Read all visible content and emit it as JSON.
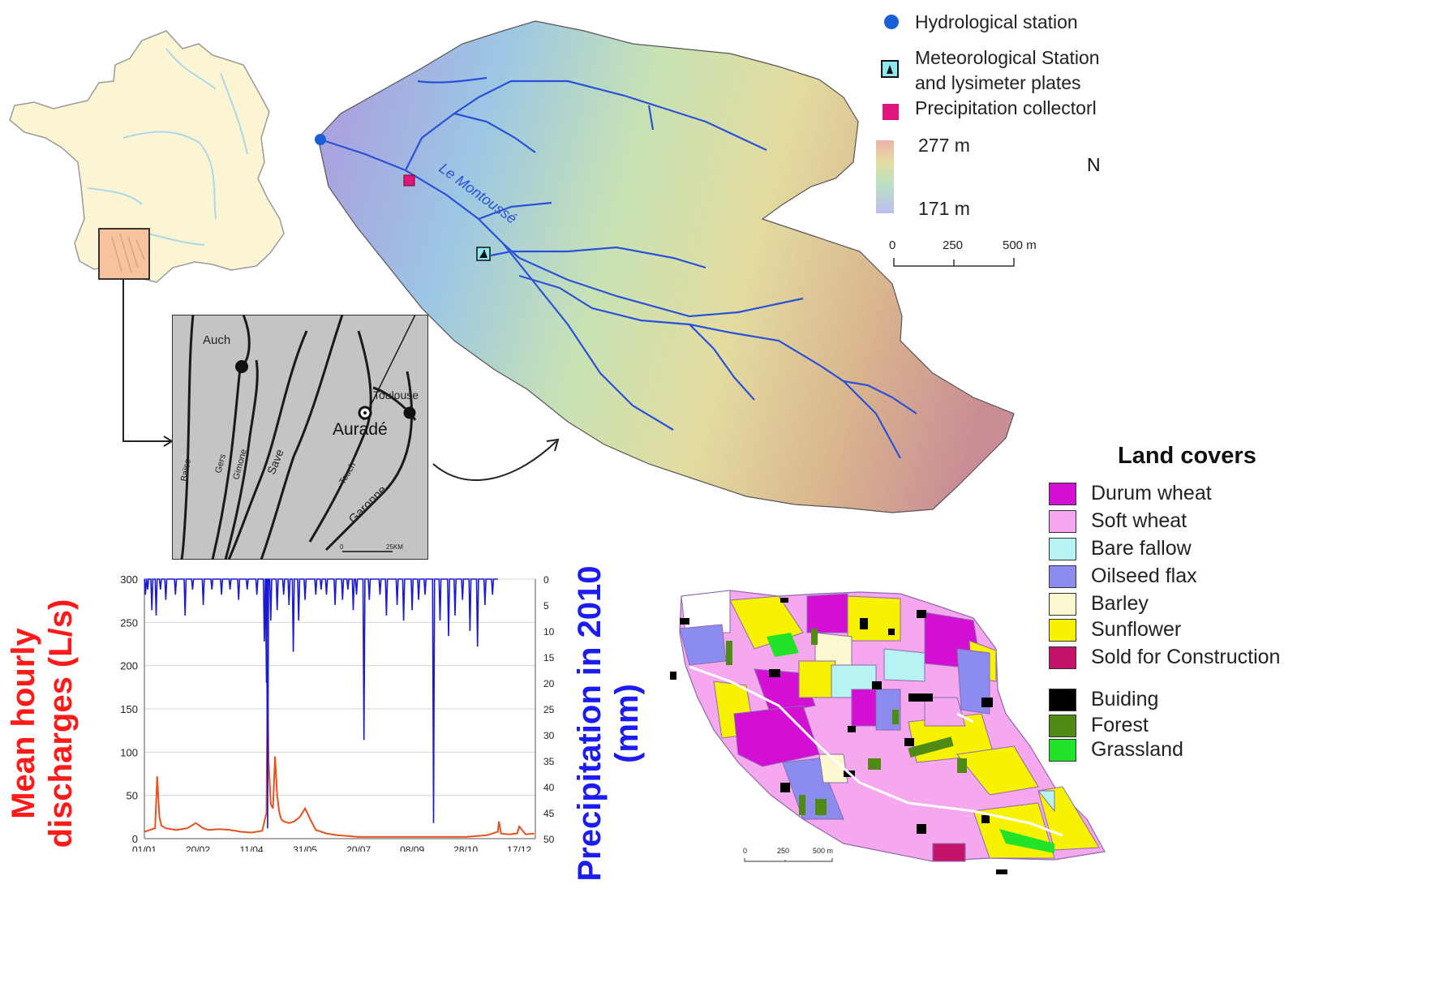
{
  "france_map": {
    "inset_label": "Auch",
    "city_labels": [
      "Toulouse",
      "Auradé"
    ],
    "river_labels": [
      "Baïse",
      "Gers",
      "Gimone",
      "Save",
      "Touch",
      "Garonne"
    ],
    "scale_labels": [
      "0",
      "25KM"
    ]
  },
  "catchment": {
    "river_label": "Le Montoussé",
    "legend": {
      "hydro": "Hydrological station",
      "meteo_line1": "Meteorological Station",
      "meteo_line2": "and lysimeter plates",
      "precip": "Precipitation collectorl",
      "elev_max": "277 m",
      "elev_min": "171 m"
    },
    "scale": [
      "0",
      "250",
      "500 m"
    ],
    "north": "N",
    "colors": {
      "hydro": "#1a5fd6",
      "precip": "#e0157e",
      "river": "#2a52d8"
    }
  },
  "land_covers": {
    "title": "Land covers",
    "items": [
      {
        "label": "Durum wheat",
        "color": "#d40fd4"
      },
      {
        "label": "Soft wheat",
        "color": "#f5a8ee"
      },
      {
        "label": "Bare fallow",
        "color": "#b7f3f3"
      },
      {
        "label": "Oilseed flax",
        "color": "#8c8cf0"
      },
      {
        "label": "Barley",
        "color": "#fbf7cf"
      },
      {
        "label": "Sunflower",
        "color": "#f7f200"
      },
      {
        "label": "Sold for Construction",
        "color": "#c41469"
      },
      {
        "label": "Buiding",
        "color": "#000000"
      },
      {
        "label": "Forest",
        "color": "#4e8a14"
      },
      {
        "label": "Grassland",
        "color": "#22e32a"
      }
    ],
    "scale": [
      "0",
      "250",
      "500 m"
    ]
  },
  "chart_data": {
    "type": "line",
    "ylabel": "Mean hourly discharges (L/s)",
    "y2label": "Precipitation in 2010 (mm)",
    "x_ticks": [
      "01/01",
      "20/02",
      "11/04",
      "31/05",
      "20/07",
      "08/09",
      "28/10",
      "17/12"
    ],
    "x_tick_days": [
      0,
      50,
      100,
      150,
      200,
      250,
      300,
      350
    ],
    "ylim": [
      0,
      300
    ],
    "y_ticks": [
      0,
      50,
      100,
      150,
      200,
      250,
      300
    ],
    "y2lim": [
      50,
      0
    ],
    "y2_ticks": [
      0,
      5,
      10,
      15,
      20,
      25,
      30,
      35,
      40,
      45,
      50
    ],
    "grid": true,
    "series": [
      {
        "color": "#e8501f",
        "x": [
          0,
          5,
          10,
          12,
          14,
          16,
          20,
          30,
          40,
          48,
          55,
          60,
          70,
          80,
          90,
          100,
          110,
          114,
          115,
          116,
          118,
          120,
          122,
          124,
          126,
          128,
          130,
          135,
          140,
          145,
          150,
          155,
          160,
          170,
          180,
          190,
          200,
          220,
          240,
          260,
          280,
          300,
          320,
          330,
          331,
          333,
          340,
          348,
          350,
          356,
          364
        ],
        "y": [
          8,
          10,
          12,
          72,
          25,
          15,
          12,
          10,
          12,
          18,
          12,
          10,
          11,
          10,
          8,
          7,
          9,
          30,
          175,
          90,
          40,
          35,
          95,
          50,
          30,
          22,
          20,
          18,
          20,
          25,
          35,
          22,
          10,
          6,
          4,
          3,
          2,
          2,
          2,
          2,
          2,
          2,
          4,
          8,
          20,
          6,
          5,
          6,
          14,
          5,
          6
        ]
      },
      {
        "color": "#1a1ad0",
        "spikes": [
          [
            1,
            3
          ],
          [
            3,
            2
          ],
          [
            7,
            6
          ],
          [
            11,
            7
          ],
          [
            15,
            2
          ],
          [
            20,
            4
          ],
          [
            29,
            3
          ],
          [
            38,
            7
          ],
          [
            45,
            2
          ],
          [
            55,
            5
          ],
          [
            63,
            2
          ],
          [
            72,
            3
          ],
          [
            80,
            2
          ],
          [
            88,
            4
          ],
          [
            96,
            2
          ],
          [
            105,
            3
          ],
          [
            112,
            12
          ],
          [
            114,
            20
          ],
          [
            115,
            48
          ],
          [
            118,
            8
          ],
          [
            124,
            6
          ],
          [
            130,
            3
          ],
          [
            135,
            5
          ],
          [
            139,
            14
          ],
          [
            144,
            8
          ],
          [
            150,
            4
          ],
          [
            160,
            3
          ],
          [
            165,
            2
          ],
          [
            170,
            3
          ],
          [
            178,
            5
          ],
          [
            185,
            4
          ],
          [
            190,
            2
          ],
          [
            195,
            6
          ],
          [
            198,
            3
          ],
          [
            205,
            31
          ],
          [
            210,
            4
          ],
          [
            220,
            3
          ],
          [
            226,
            7
          ],
          [
            236,
            5
          ],
          [
            242,
            8
          ],
          [
            250,
            6
          ],
          [
            256,
            4
          ],
          [
            262,
            3
          ],
          [
            270,
            47
          ],
          [
            276,
            8
          ],
          [
            284,
            11
          ],
          [
            290,
            7
          ],
          [
            297,
            4
          ],
          [
            304,
            10
          ],
          [
            311,
            13
          ],
          [
            318,
            5
          ],
          [
            325,
            3
          ]
        ]
      }
    ]
  }
}
